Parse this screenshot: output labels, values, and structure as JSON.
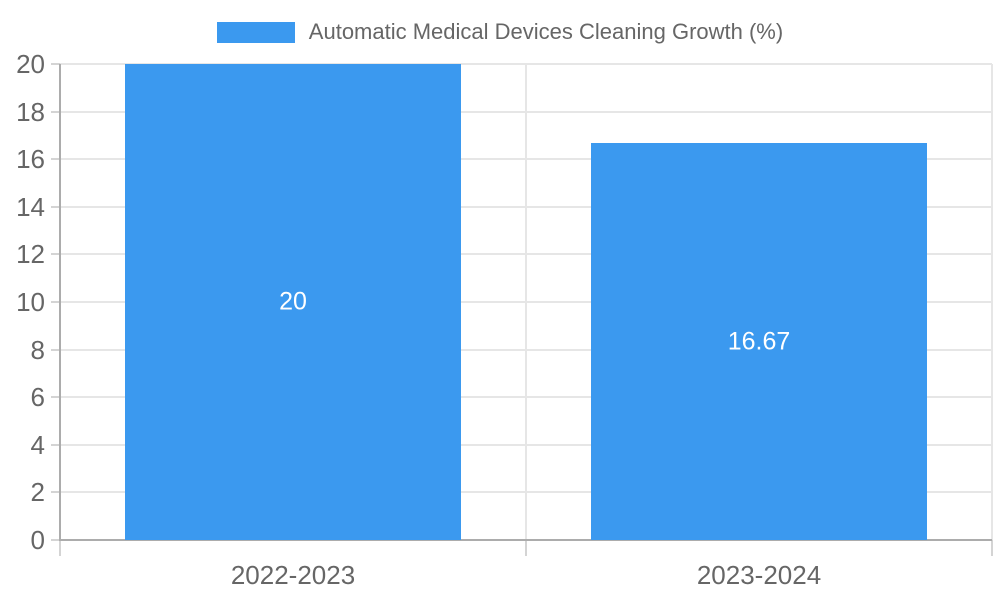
{
  "chart_data": {
    "type": "bar",
    "title": "Automatic Medical Devices Cleaning Growth (%)",
    "categories": [
      "2022-2023",
      "2023-2024"
    ],
    "series": [
      {
        "name": "Automatic Medical Devices Cleaning Growth (%)",
        "values": [
          20,
          16.67
        ]
      }
    ],
    "value_labels": [
      "20",
      "16.67"
    ],
    "xlabel": "",
    "ylabel": "",
    "ylim": [
      0,
      20
    ],
    "yticks": [
      0,
      2,
      4,
      6,
      8,
      10,
      12,
      14,
      16,
      18,
      20
    ],
    "grid": true,
    "legend_position": "top",
    "colors": {
      "bar": "#3B99EF",
      "text": "#666666",
      "grid": "#E6E6E6",
      "axis": "#ACACAC",
      "tick": "#D4D4D4",
      "bar_label": "#FFFFFF"
    }
  }
}
